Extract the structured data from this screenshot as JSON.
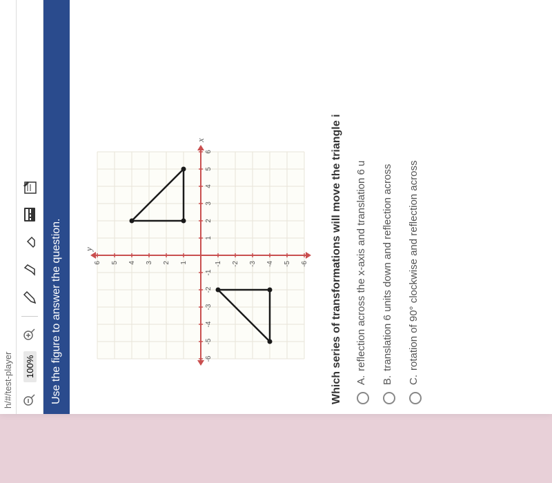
{
  "url_fragment": "h/#/test-player",
  "toolbar": {
    "zoom_pct": "100%"
  },
  "instruction": "Use the figure to answer the question.",
  "chart": {
    "type": "coordinate-grid",
    "x_range": [
      -6,
      6
    ],
    "y_range": [
      -6,
      6
    ],
    "tick_step": 1,
    "x_ticks_neg": [
      "-6",
      "-5",
      "-4",
      "-3",
      "-2",
      "-1"
    ],
    "x_ticks_pos": [
      "1",
      "2",
      "3",
      "4",
      "5",
      "6"
    ],
    "y_ticks_neg": [
      "-1",
      "-2",
      "-3",
      "-4",
      "-5",
      "-6"
    ],
    "y_ticks_pos": [
      "1",
      "2",
      "3",
      "4",
      "5",
      "6"
    ],
    "x_axis_label": "x",
    "y_axis_label": "y",
    "grid_color": "#e8e4d8",
    "axis_color": "#c94f4f",
    "shape_color": "#1a1a1a",
    "background_color": "#fdfdf8",
    "triangle1": [
      [
        2,
        4
      ],
      [
        2,
        1
      ],
      [
        5,
        1
      ]
    ],
    "triangle2": [
      [
        -2,
        -1
      ],
      [
        -2,
        -4
      ],
      [
        -5,
        -4
      ]
    ]
  },
  "question": "Which series of transformations will move the triangle i",
  "answers": [
    {
      "letter": "A.",
      "text": "reflection across the x-axis and translation 6 u"
    },
    {
      "letter": "B.",
      "text": "translation 6 units down and reflection across"
    },
    {
      "letter": "C.",
      "text": "rotation of 90° clockwise and reflection across"
    }
  ]
}
